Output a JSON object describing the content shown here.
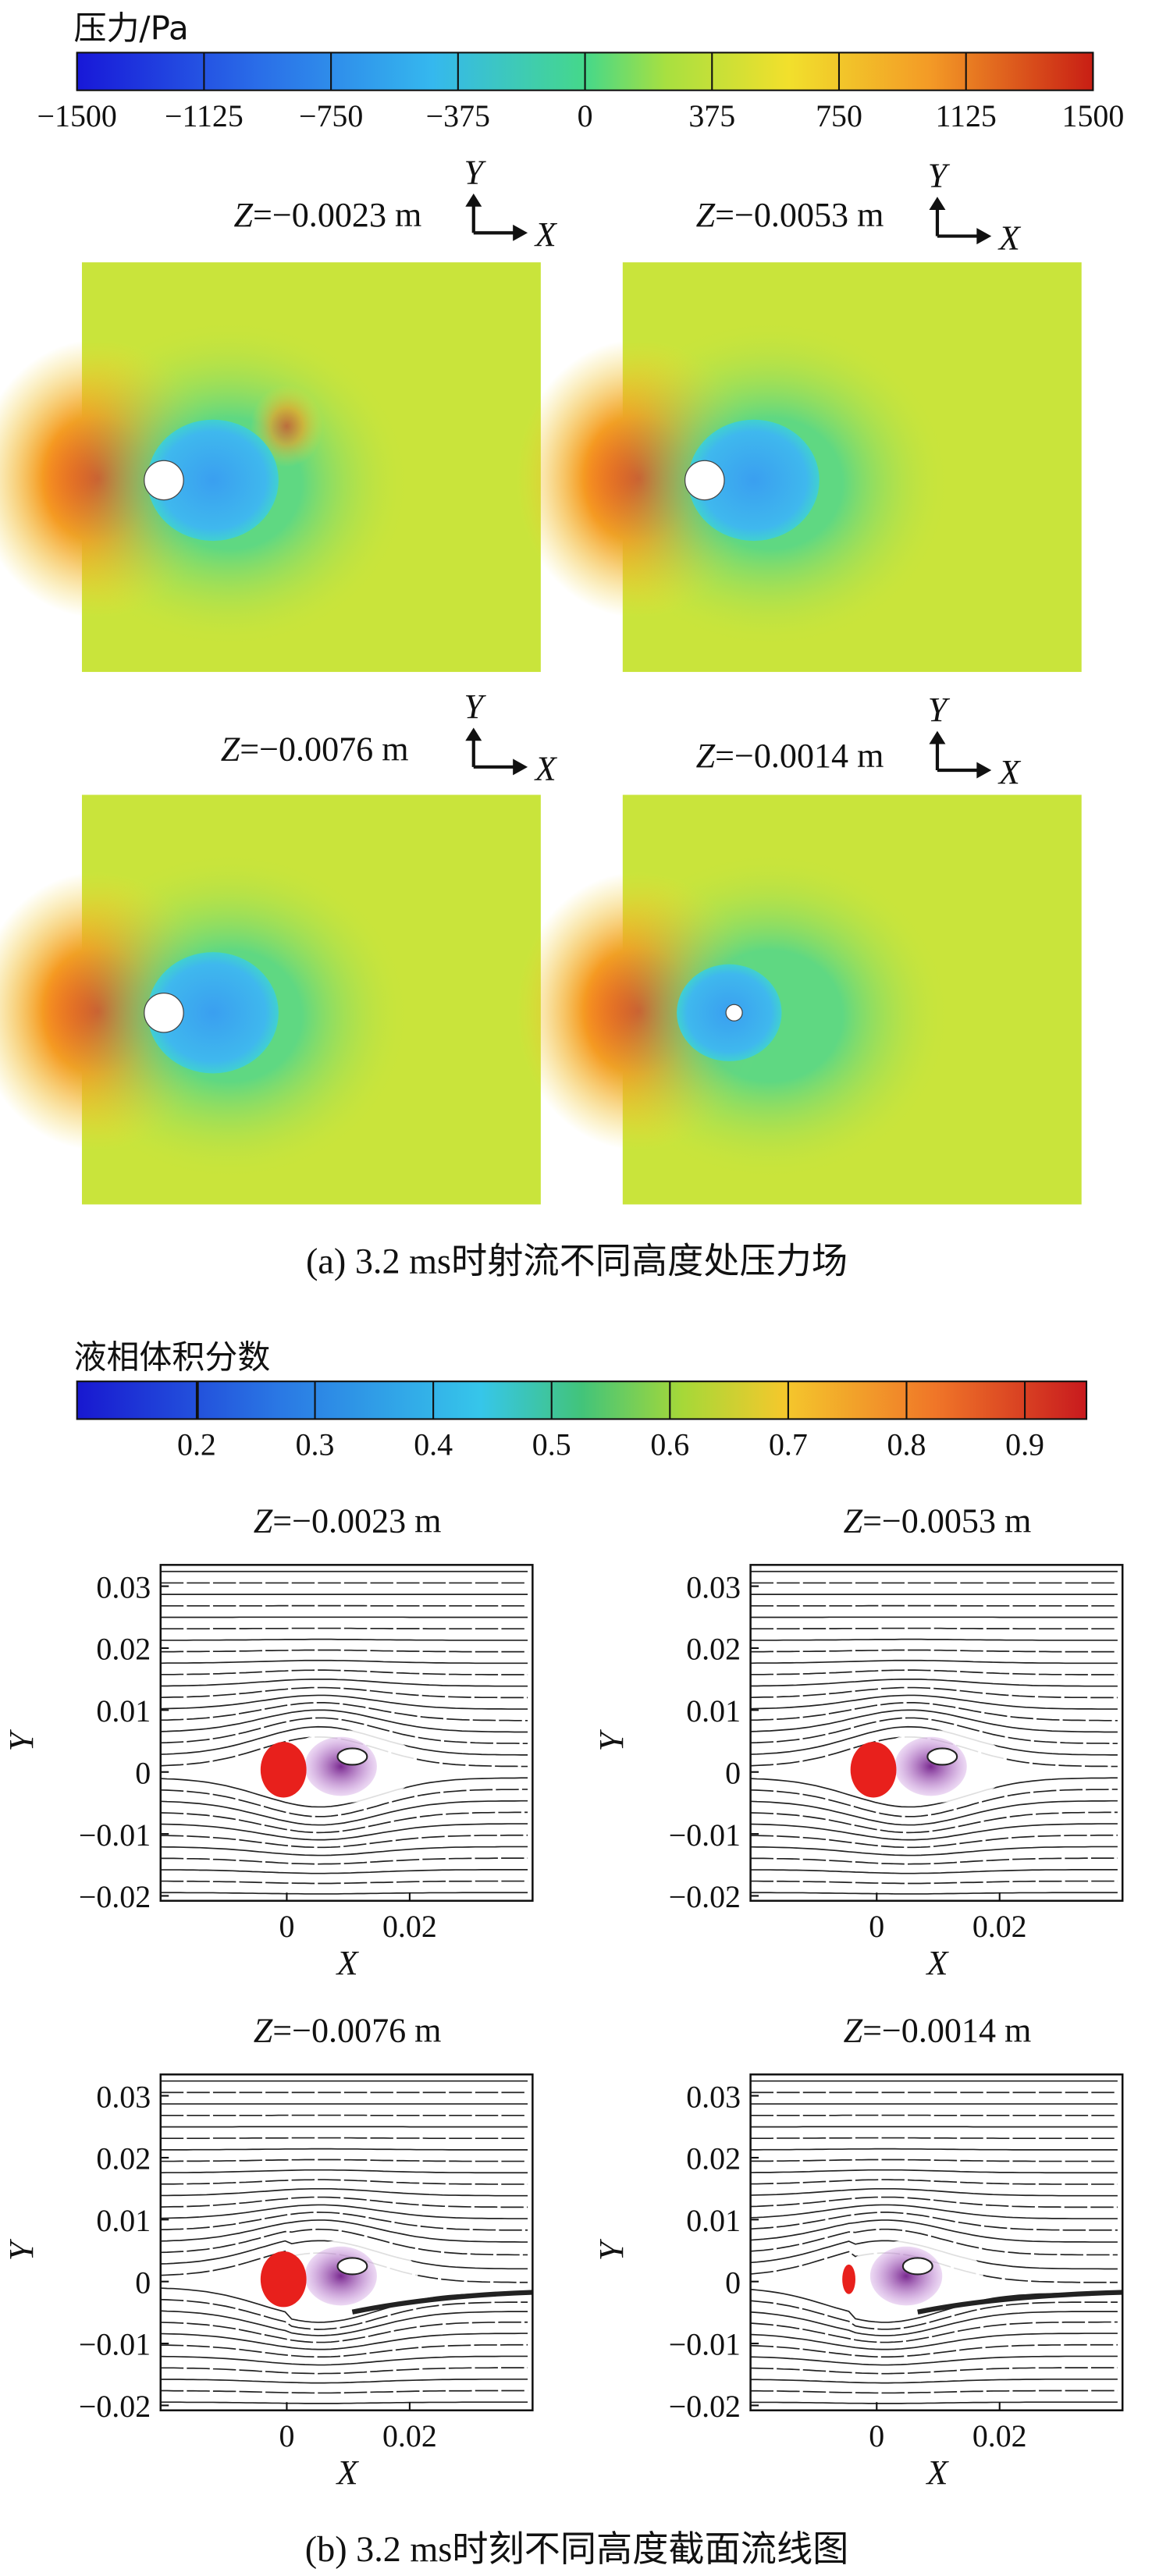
{
  "panel_a": {
    "colorbar": {
      "title": "压力/Pa",
      "ticks": [
        "−1500",
        "−1125",
        "−750",
        "−375",
        "0",
        "375",
        "750",
        "1125",
        "1500"
      ]
    },
    "axis_symbols": {
      "x": "X",
      "y": "Y"
    },
    "plots": [
      {
        "symbol": "Z",
        "label": "=−0.0023 m"
      },
      {
        "symbol": "Z",
        "label": "=−0.0053 m"
      },
      {
        "symbol": "Z",
        "label": "=−0.0076 m"
      },
      {
        "symbol": "Z",
        "label": "=−0.0014 m"
      }
    ],
    "caption": "(a) 3.2 ms时射流不同高度处压力场"
  },
  "panel_b": {
    "colorbar": {
      "title": "液相体积分数",
      "ticks": [
        "0.2",
        "0.3",
        "0.4",
        "0.5",
        "0.6",
        "0.7",
        "0.8",
        "0.9"
      ]
    },
    "y_ticks": [
      "0.03",
      "0.02",
      "0.01",
      "0",
      "−0.01",
      "−0.02"
    ],
    "x_ticks": [
      "0",
      "0.02"
    ],
    "x_label": "X",
    "y_label": "Y",
    "plots": [
      {
        "symbol": "Z",
        "label": "=−0.0023 m"
      },
      {
        "symbol": "Z",
        "label": "=−0.0053 m"
      },
      {
        "symbol": "Z",
        "label": "=−0.0076 m"
      },
      {
        "symbol": "Z",
        "label": "=−0.0014 m"
      }
    ],
    "caption": "(b) 3.2 ms时刻不同高度截面流线图"
  }
}
